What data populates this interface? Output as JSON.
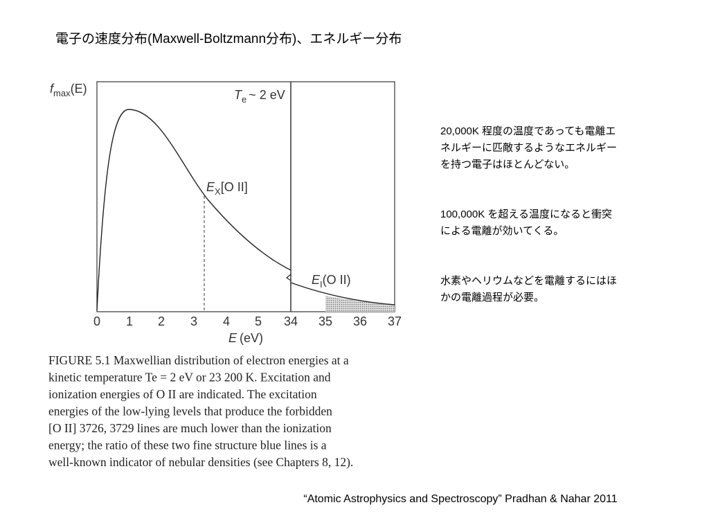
{
  "title": "電子の速度分布(Maxwell-Boltzmann分布)、エネルギー分布",
  "figure": {
    "y_label": [
      "f",
      "max",
      "(E)"
    ],
    "temperature": [
      "T",
      "e",
      "~ 2 eV"
    ],
    "excitation": [
      "E",
      "X",
      "[O II]"
    ],
    "ionization": [
      "E",
      "I",
      "(O II)"
    ],
    "x_label": [
      "E",
      "(eV)"
    ],
    "x_ticks": [
      "0",
      "1",
      "2",
      "3",
      "4",
      "5",
      "34",
      "35",
      "36",
      "37"
    ],
    "caption": [
      "FIGURE 5.1  Maxwellian distribution of electron energies at a",
      "kinetic temperature Te = 2 eV or 23 200 K. Excitation and",
      "ionization energies of O II are indicated. The excitation",
      "energies of the low-lying levels that produce the forbidden",
      "[O II] 3726, 3729 lines are much lower than the ionization",
      "energy; the ratio of these two fine structure blue lines is a",
      "well-known indicator of nebular densities (see Chapters 8, 12)."
    ]
  },
  "notes": [
    [
      "20,000K 程度の温度であっても電離エ",
      "ネルギーに匹敵するようなエネルギー",
      "を持つ電子はほとんどない。"
    ],
    [
      "100,000K を超える温度になると衝突",
      "による電離が効いてくる。"
    ],
    [
      "水素やヘリウムなどを電離するにはほ",
      "かの電離過程が必要。"
    ]
  ],
  "citation": "“Atomic Astrophysics and Spectroscopy” Pradhan & Nahar 2011"
}
